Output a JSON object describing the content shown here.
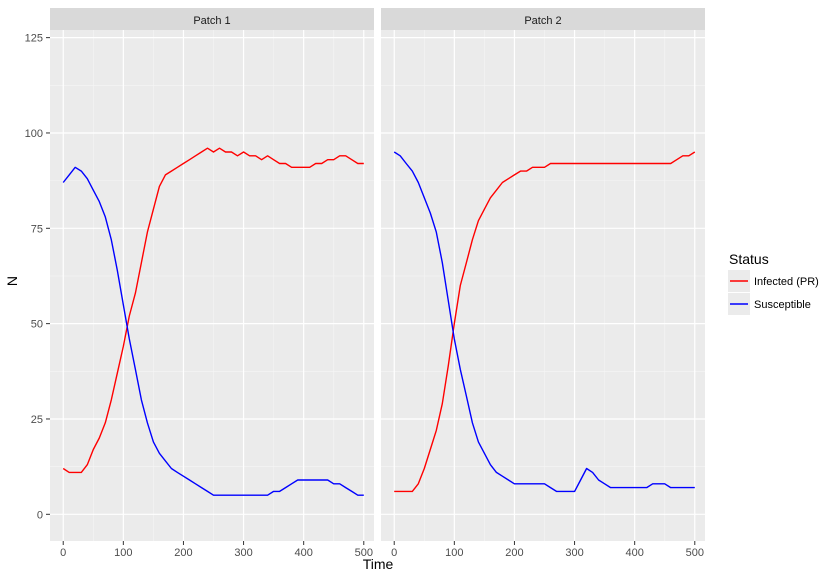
{
  "chart_data": {
    "type": "line",
    "xlabel": "Time",
    "ylabel": "N",
    "xlim": [
      -22,
      517
    ],
    "ylim": [
      -7,
      127
    ],
    "x_ticks": [
      0,
      100,
      200,
      300,
      400,
      500
    ],
    "y_ticks": [
      0,
      25,
      50,
      75,
      100,
      125
    ],
    "grid": true,
    "legend": {
      "title": "Status",
      "position": "right",
      "entries": [
        {
          "label": "Infected (PR)",
          "color": "#ff0000"
        },
        {
          "label": "Susceptible",
          "color": "#0000ff"
        }
      ]
    },
    "panels": [
      {
        "strip": "Patch 1",
        "series": [
          {
            "name": "Infected (PR)",
            "color": "#ff0000",
            "x": [
              0,
              10,
              20,
              30,
              40,
              50,
              60,
              70,
              80,
              90,
              100,
              110,
              120,
              130,
              140,
              150,
              160,
              170,
              180,
              190,
              200,
              210,
              220,
              230,
              240,
              250,
              260,
              270,
              280,
              290,
              300,
              310,
              320,
              330,
              340,
              350,
              360,
              370,
              380,
              390,
              400,
              410,
              420,
              430,
              440,
              450,
              460,
              470,
              480,
              490,
              500
            ],
            "y": [
              12,
              11,
              11,
              11,
              13,
              17,
              20,
              24,
              30,
              37,
              44,
              52,
              58,
              66,
              74,
              80,
              86,
              89,
              90,
              91,
              92,
              93,
              94,
              95,
              96,
              95,
              96,
              95,
              95,
              94,
              95,
              94,
              94,
              93,
              94,
              93,
              92,
              92,
              91,
              91,
              91,
              91,
              92,
              92,
              93,
              93,
              94,
              94,
              93,
              92,
              92
            ]
          },
          {
            "name": "Susceptible",
            "color": "#0000ff",
            "x": [
              0,
              10,
              20,
              30,
              40,
              50,
              60,
              70,
              80,
              90,
              100,
              110,
              120,
              130,
              140,
              150,
              160,
              170,
              180,
              190,
              200,
              210,
              220,
              230,
              240,
              250,
              260,
              270,
              280,
              290,
              300,
              310,
              320,
              330,
              340,
              350,
              360,
              370,
              380,
              390,
              400,
              410,
              420,
              430,
              440,
              450,
              460,
              470,
              480,
              490,
              500
            ],
            "y": [
              87,
              89,
              91,
              90,
              88,
              85,
              82,
              78,
              72,
              64,
              55,
              46,
              38,
              30,
              24,
              19,
              16,
              14,
              12,
              11,
              10,
              9,
              8,
              7,
              6,
              5,
              5,
              5,
              5,
              5,
              5,
              5,
              5,
              5,
              5,
              6,
              6,
              7,
              8,
              9,
              9,
              9,
              9,
              9,
              9,
              8,
              8,
              7,
              6,
              5,
              5
            ]
          }
        ]
      },
      {
        "strip": "Patch 2",
        "series": [
          {
            "name": "Infected (PR)",
            "color": "#ff0000",
            "x": [
              0,
              10,
              20,
              30,
              40,
              50,
              60,
              70,
              80,
              90,
              100,
              110,
              120,
              130,
              140,
              150,
              160,
              170,
              180,
              190,
              200,
              210,
              220,
              230,
              240,
              250,
              260,
              270,
              280,
              290,
              300,
              310,
              320,
              330,
              340,
              350,
              360,
              370,
              380,
              390,
              400,
              410,
              420,
              430,
              440,
              450,
              460,
              470,
              480,
              490,
              500
            ],
            "y": [
              6,
              6,
              6,
              6,
              8,
              12,
              17,
              22,
              29,
              39,
              50,
              60,
              66,
              72,
              77,
              80,
              83,
              85,
              87,
              88,
              89,
              90,
              90,
              91,
              91,
              91,
              92,
              92,
              92,
              92,
              92,
              92,
              92,
              92,
              92,
              92,
              92,
              92,
              92,
              92,
              92,
              92,
              92,
              92,
              92,
              92,
              92,
              93,
              94,
              94,
              95
            ]
          },
          {
            "name": "Susceptible",
            "color": "#0000ff",
            "x": [
              0,
              10,
              20,
              30,
              40,
              50,
              60,
              70,
              80,
              90,
              100,
              110,
              120,
              130,
              140,
              150,
              160,
              170,
              180,
              190,
              200,
              210,
              220,
              230,
              240,
              250,
              260,
              270,
              280,
              290,
              300,
              310,
              320,
              330,
              340,
              350,
              360,
              370,
              380,
              390,
              400,
              410,
              420,
              430,
              440,
              450,
              460,
              470,
              480,
              490,
              500
            ],
            "y": [
              95,
              94,
              92,
              90,
              87,
              83,
              79,
              74,
              66,
              56,
              46,
              38,
              31,
              24,
              19,
              16,
              13,
              11,
              10,
              9,
              8,
              8,
              8,
              8,
              8,
              8,
              7,
              6,
              6,
              6,
              6,
              9,
              12,
              11,
              9,
              8,
              7,
              7,
              7,
              7,
              7,
              7,
              7,
              8,
              8,
              8,
              7,
              7,
              7,
              7,
              7
            ]
          }
        ]
      }
    ]
  }
}
